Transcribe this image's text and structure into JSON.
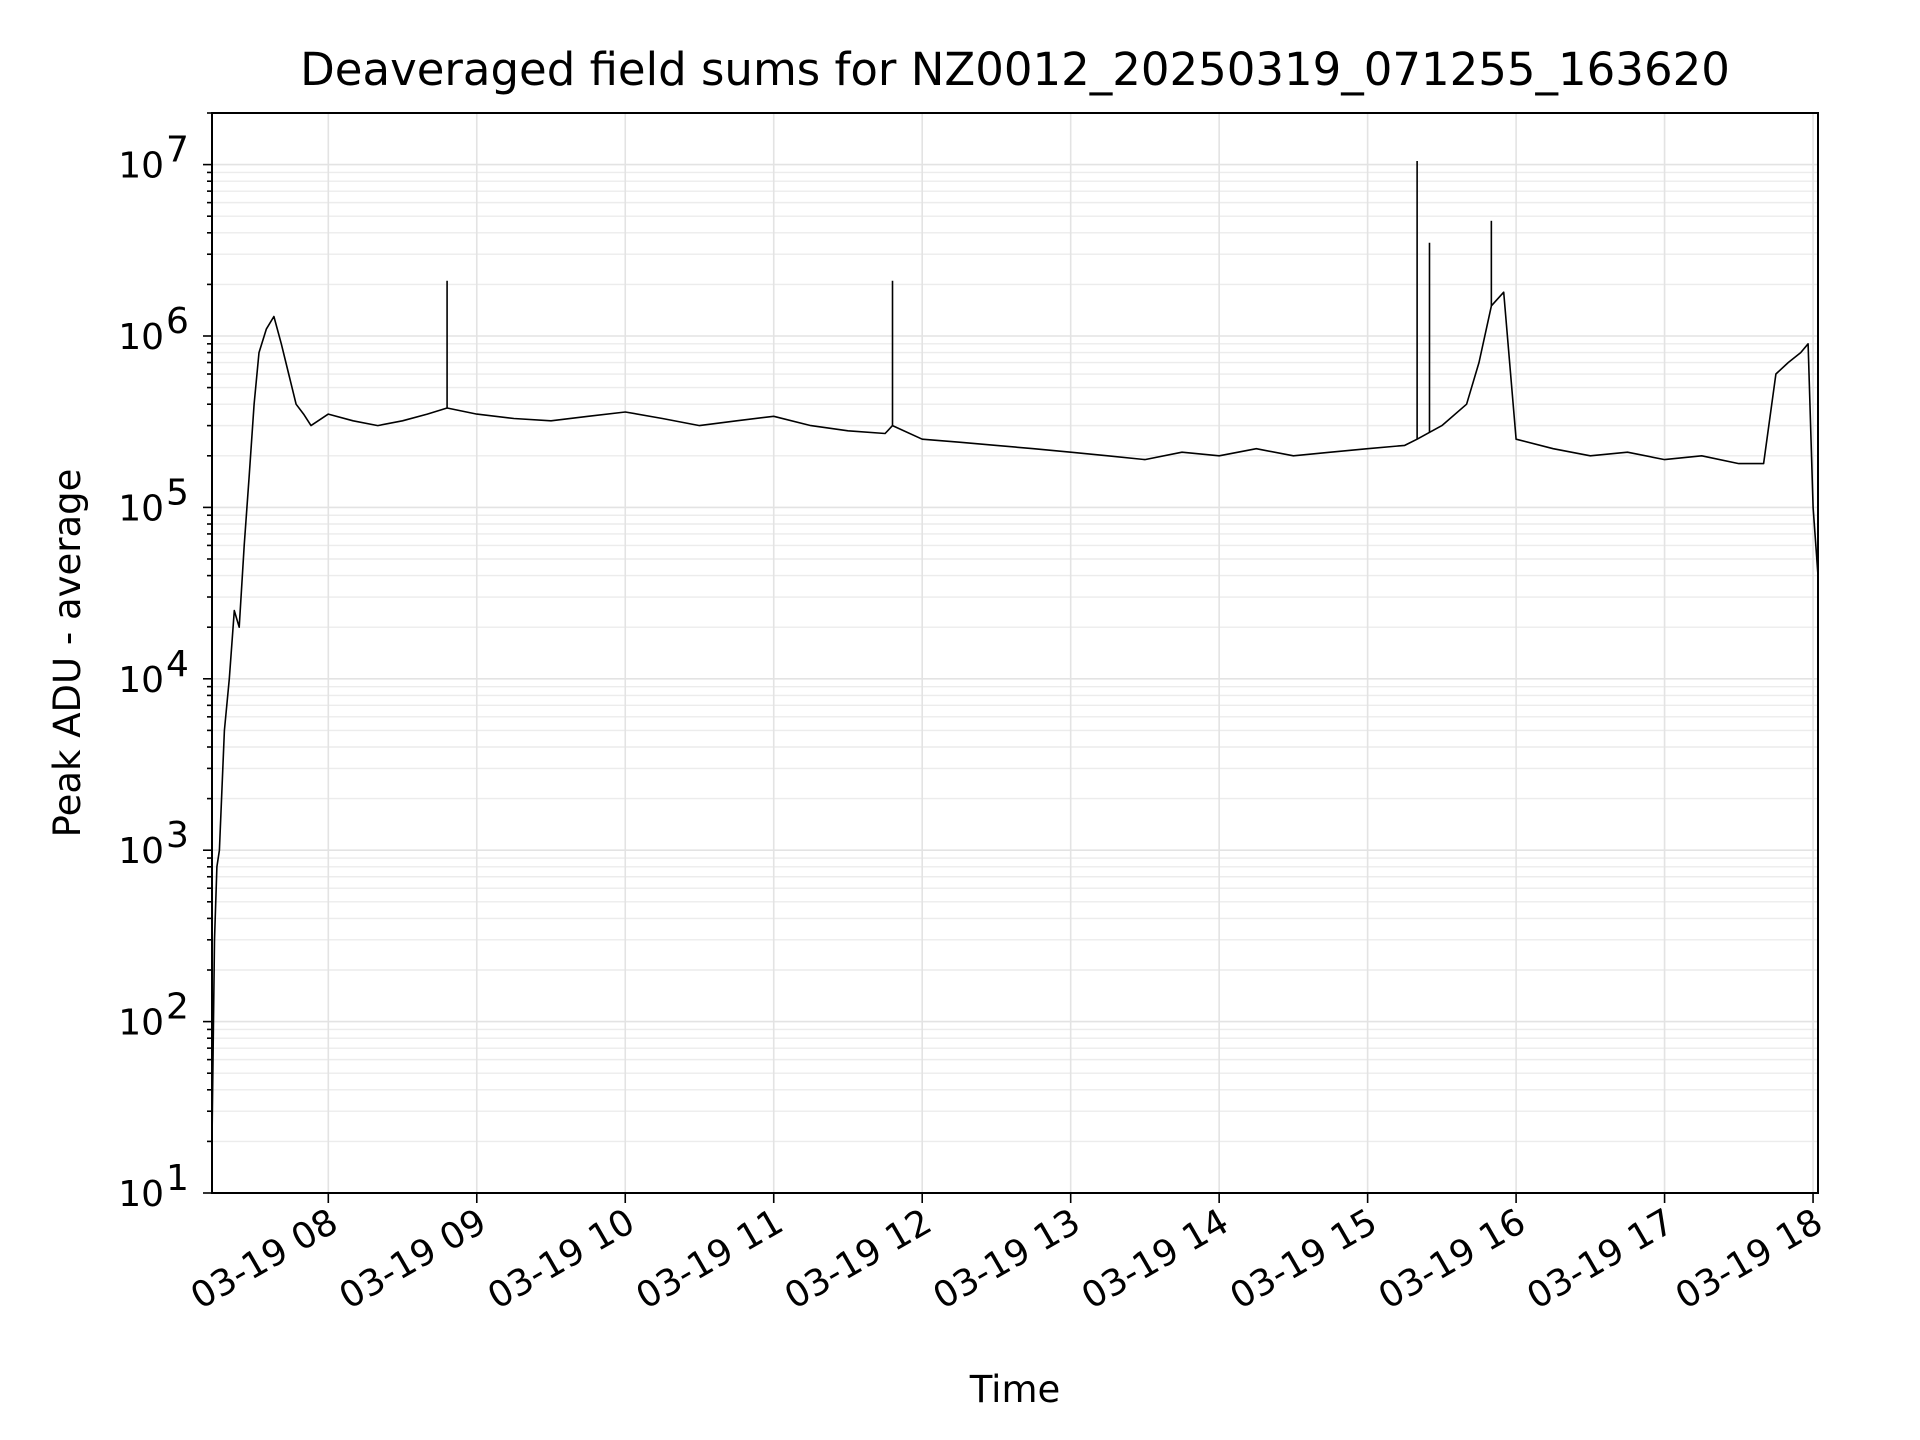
{
  "chart_data": {
    "type": "line",
    "title": "Deaveraged field sums for NZ0012_20250319_071255_163620",
    "xlabel": "Time",
    "ylabel": "Peak ADU - average",
    "yscale": "log",
    "ylim": [
      10,
      20000000
    ],
    "xlim": [
      "2025-03-19 07:13",
      "2025-03-19 18:02"
    ],
    "grid": true,
    "x_ticks": [
      "03-19 08",
      "03-19 09",
      "03-19 10",
      "03-19 11",
      "03-19 12",
      "03-19 13",
      "03-19 14",
      "03-19 15",
      "03-19 16",
      "03-19 17",
      "03-19 18"
    ],
    "y_tick_exponents": [
      1,
      2,
      3,
      4,
      5,
      6,
      7
    ],
    "line_color": "#000000",
    "series": [
      {
        "x": [
          "2025-03-19 07:13",
          "2025-03-19 07:14",
          "2025-03-19 07:15",
          "2025-03-19 07:16",
          "2025-03-19 07:18",
          "2025-03-19 07:20",
          "2025-03-19 07:22",
          "2025-03-19 07:24",
          "2025-03-19 07:26",
          "2025-03-19 07:28",
          "2025-03-19 07:30",
          "2025-03-19 07:32",
          "2025-03-19 07:35",
          "2025-03-19 07:38",
          "2025-03-19 07:41",
          "2025-03-19 07:44",
          "2025-03-19 07:47",
          "2025-03-19 07:50",
          "2025-03-19 07:53",
          "2025-03-19 08:00",
          "2025-03-19 08:10",
          "2025-03-19 08:20",
          "2025-03-19 08:30",
          "2025-03-19 08:40",
          "2025-03-19 08:48",
          "2025-03-19 09:00",
          "2025-03-19 09:15",
          "2025-03-19 09:30",
          "2025-03-19 09:45",
          "2025-03-19 10:00",
          "2025-03-19 10:15",
          "2025-03-19 10:30",
          "2025-03-19 10:45",
          "2025-03-19 11:00",
          "2025-03-19 11:15",
          "2025-03-19 11:30",
          "2025-03-19 11:45",
          "2025-03-19 11:48",
          "2025-03-19 12:00",
          "2025-03-19 12:15",
          "2025-03-19 12:30",
          "2025-03-19 12:45",
          "2025-03-19 13:00",
          "2025-03-19 13:15",
          "2025-03-19 13:30",
          "2025-03-19 13:45",
          "2025-03-19 14:00",
          "2025-03-19 14:15",
          "2025-03-19 14:30",
          "2025-03-19 14:45",
          "2025-03-19 15:00",
          "2025-03-19 15:15",
          "2025-03-19 15:20",
          "2025-03-19 15:30",
          "2025-03-19 15:40",
          "2025-03-19 15:45",
          "2025-03-19 15:50",
          "2025-03-19 15:55",
          "2025-03-19 16:00",
          "2025-03-19 16:15",
          "2025-03-19 16:30",
          "2025-03-19 16:45",
          "2025-03-19 17:00",
          "2025-03-19 17:15",
          "2025-03-19 17:30",
          "2025-03-19 17:40",
          "2025-03-19 17:45",
          "2025-03-19 17:50",
          "2025-03-19 17:55",
          "2025-03-19 17:58",
          "2025-03-19 18:00",
          "2025-03-19 18:02"
        ],
        "values": [
          20,
          300,
          800,
          1000,
          5000,
          10000,
          25000,
          20000,
          60000,
          150000,
          400000,
          800000,
          1100000,
          1300000,
          900000,
          600000,
          400000,
          350000,
          300000,
          350000,
          320000,
          300000,
          320000,
          350000,
          380000,
          350000,
          330000,
          320000,
          340000,
          360000,
          330000,
          300000,
          320000,
          340000,
          300000,
          280000,
          270000,
          300000,
          250000,
          240000,
          230000,
          220000,
          210000,
          200000,
          190000,
          210000,
          200000,
          220000,
          200000,
          210000,
          220000,
          230000,
          250000,
          300000,
          400000,
          700000,
          1500000,
          1800000,
          250000,
          220000,
          200000,
          210000,
          190000,
          200000,
          180000,
          180000,
          600000,
          700000,
          800000,
          900000,
          100000,
          40000
        ]
      }
    ],
    "spikes": [
      {
        "x": "2025-03-19 08:48",
        "value": 2100000
      },
      {
        "x": "2025-03-19 11:48",
        "value": 2100000
      },
      {
        "x": "2025-03-19 15:20",
        "value": 10500000
      },
      {
        "x": "2025-03-19 15:25",
        "value": 3500000
      },
      {
        "x": "2025-03-19 15:50",
        "value": 4700000
      }
    ]
  }
}
